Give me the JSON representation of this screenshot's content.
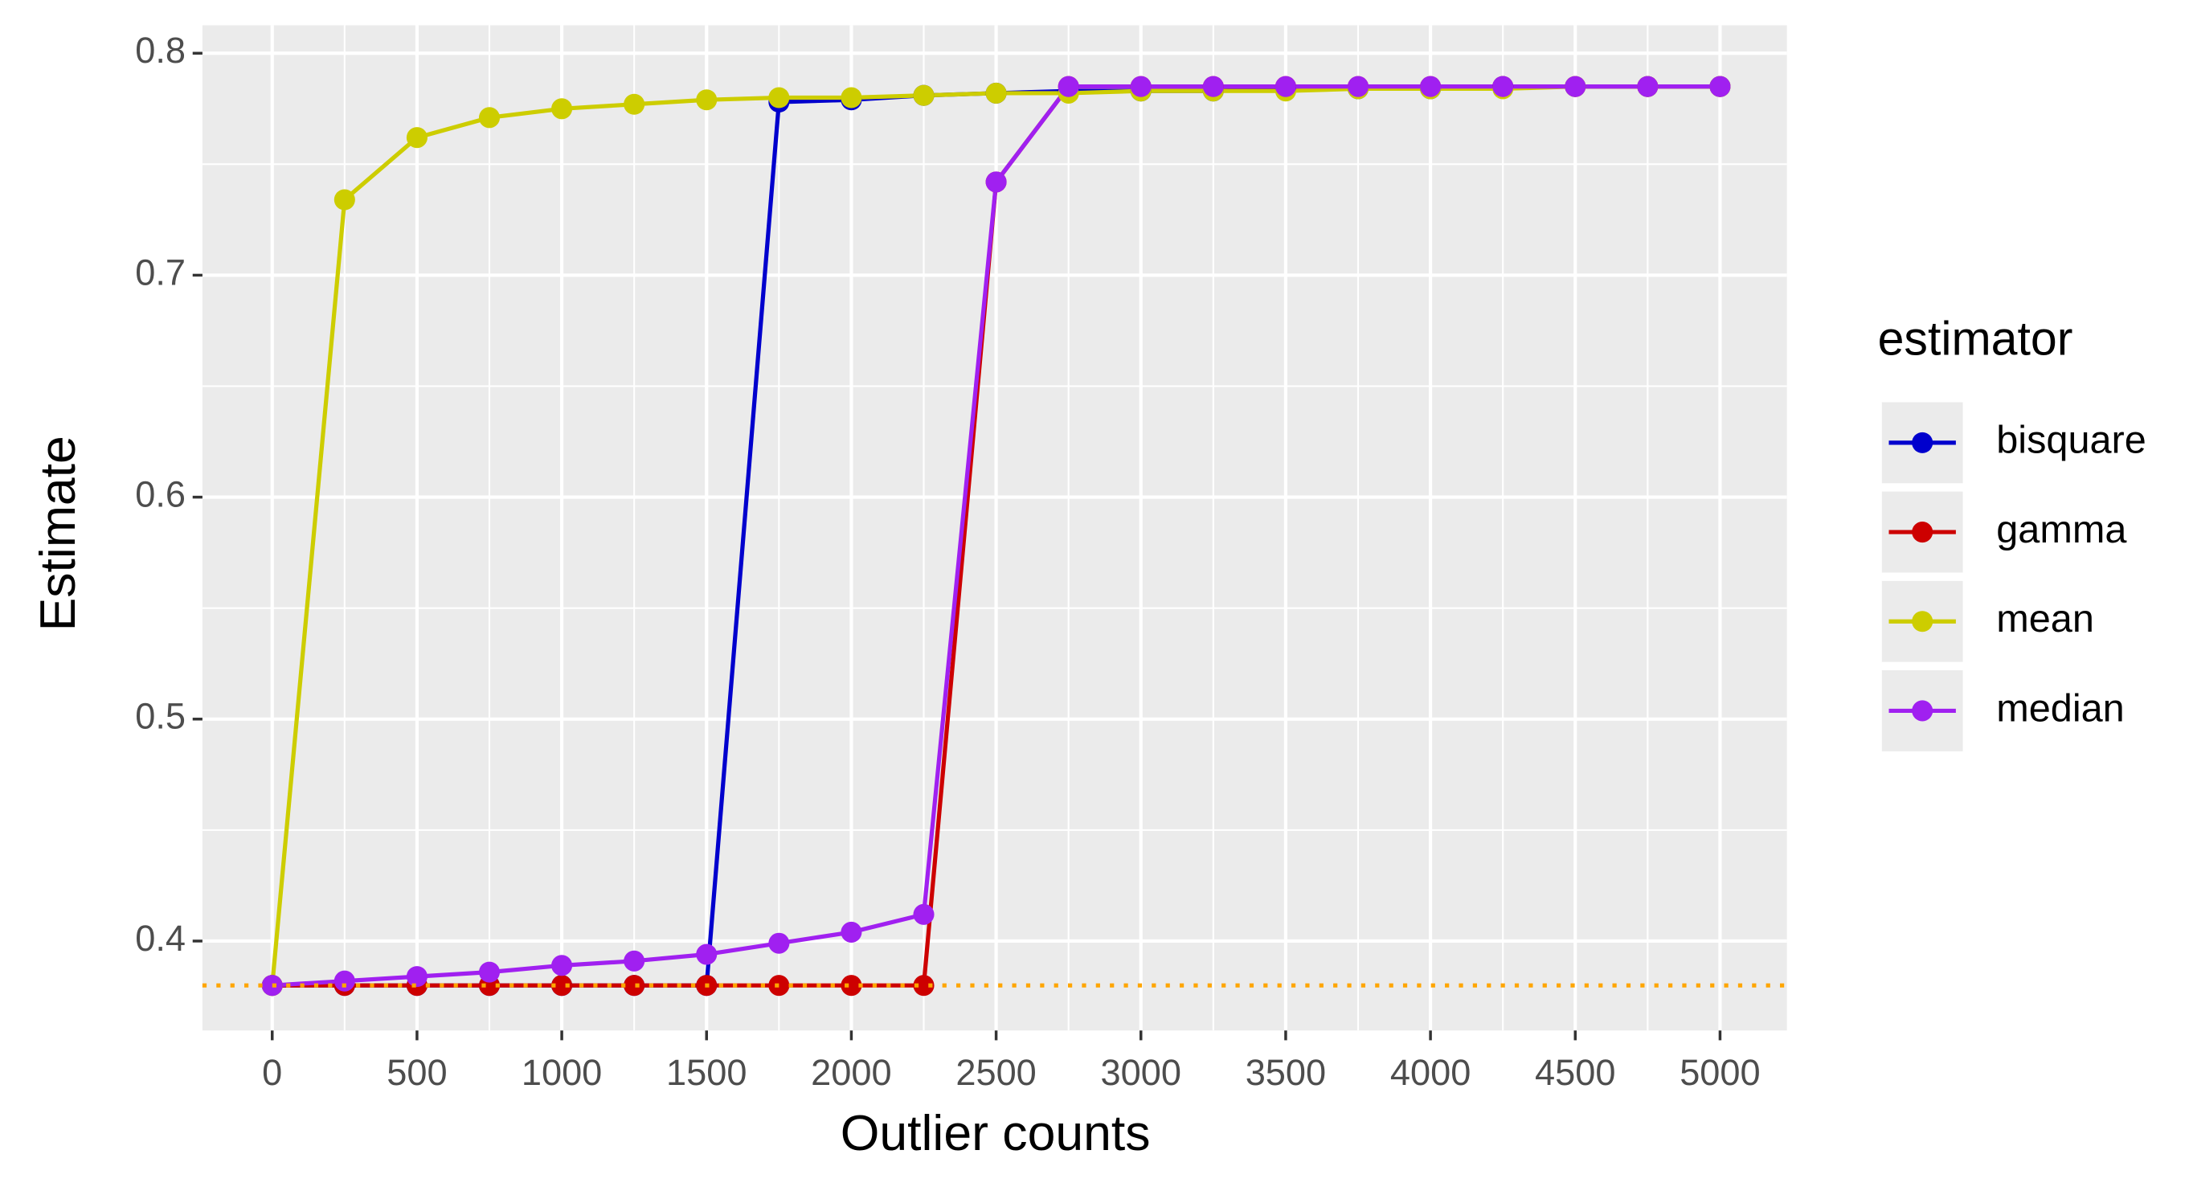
{
  "chart_data": {
    "type": "line",
    "x_label": "Outlier counts",
    "y_label": "Estimate",
    "legend_title": "estimator",
    "legend_position": "right",
    "x": [
      0,
      250,
      500,
      750,
      1000,
      1250,
      1500,
      1750,
      2000,
      2250,
      2500,
      2750,
      3000,
      3250,
      3500,
      3750,
      4000,
      4250,
      4500,
      4750,
      5000
    ],
    "series": [
      {
        "name": "bisquare",
        "color": "#0000cd",
        "values": [
          0.38,
          0.38,
          0.38,
          0.38,
          0.38,
          0.38,
          0.38,
          0.778,
          0.779,
          0.781,
          0.782,
          0.783,
          0.783,
          0.783,
          0.784,
          0.784,
          0.784,
          0.785,
          0.785,
          0.785,
          0.785
        ]
      },
      {
        "name": "gamma",
        "color": "#cd0000",
        "values": [
          0.38,
          0.38,
          0.38,
          0.38,
          0.38,
          0.38,
          0.38,
          0.38,
          0.38,
          0.38,
          0.742,
          0.785,
          0.785,
          0.785,
          0.785,
          0.785,
          0.785,
          0.785,
          0.785,
          0.785,
          0.785
        ]
      },
      {
        "name": "mean",
        "color": "#cdcd00",
        "values": [
          0.38,
          0.734,
          0.762,
          0.771,
          0.775,
          0.777,
          0.779,
          0.78,
          0.78,
          0.781,
          0.782,
          0.782,
          0.783,
          0.783,
          0.783,
          0.784,
          0.784,
          0.784,
          0.785,
          0.785,
          0.785
        ]
      },
      {
        "name": "median",
        "color": "#a020f0",
        "values": [
          0.38,
          0.382,
          0.384,
          0.386,
          0.389,
          0.391,
          0.394,
          0.399,
          0.404,
          0.412,
          0.742,
          0.785,
          0.785,
          0.785,
          0.785,
          0.785,
          0.785,
          0.785,
          0.785,
          0.785,
          0.785
        ]
      }
    ],
    "hline": {
      "value": 0.38,
      "color": "#ffa500"
    },
    "xlim": [
      -241,
      5231
    ],
    "ylim": [
      0.3597,
      0.8126
    ],
    "xticks": [
      0,
      500,
      1000,
      1500,
      2000,
      2500,
      3000,
      3500,
      4000,
      4500,
      5000
    ],
    "yticks": [
      0.4,
      0.5,
      0.6,
      0.7,
      0.8
    ],
    "grid": true
  }
}
